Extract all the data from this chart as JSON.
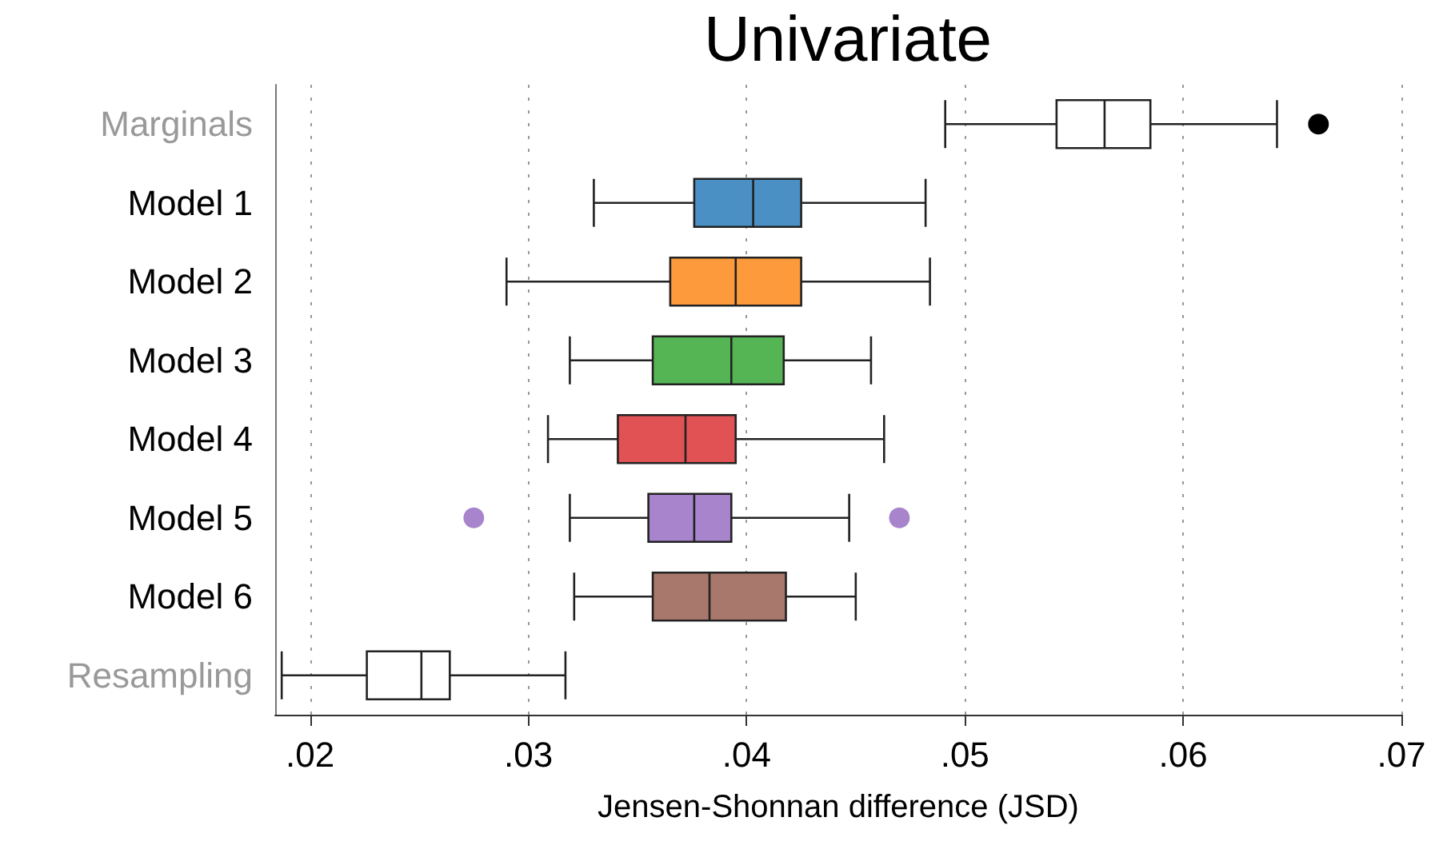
{
  "chart_data": {
    "type": "box",
    "title": "Univariate",
    "xlabel": "Jensen-Shonnan difference (JSD)",
    "orientation": "horizontal",
    "categories": [
      "Marginals",
      "Model 1",
      "Model 2",
      "Model 3",
      "Model 4",
      "Model 5",
      "Model 6",
      "Resampling"
    ],
    "colors": [
      "#ffffff",
      "#4a90c4",
      "#fd9a3c",
      "#55b454",
      "#e05254",
      "#a884cc",
      "#a8786c",
      "#ffffff"
    ],
    "boxes": [
      {
        "low": 0.0491,
        "q1": 0.0542,
        "median": 0.0564,
        "q3": 0.0585,
        "high": 0.0643,
        "outliers": [
          0.0662
        ]
      },
      {
        "low": 0.033,
        "q1": 0.0376,
        "median": 0.0403,
        "q3": 0.0425,
        "high": 0.0482
      },
      {
        "low": 0.029,
        "q1": 0.0365,
        "median": 0.0395,
        "q3": 0.0425,
        "high": 0.0484
      },
      {
        "low": 0.0319,
        "q1": 0.0357,
        "median": 0.0393,
        "q3": 0.0417,
        "high": 0.0457
      },
      {
        "low": 0.0309,
        "q1": 0.0341,
        "median": 0.0372,
        "q3": 0.0395,
        "high": 0.0463
      },
      {
        "low": 0.0319,
        "q1": 0.0355,
        "median": 0.0376,
        "q3": 0.0393,
        "high": 0.0447,
        "outliers": [
          0.0275,
          0.047
        ]
      },
      {
        "low": 0.0321,
        "q1": 0.0357,
        "median": 0.0383,
        "q3": 0.0418,
        "high": 0.045
      },
      {
        "low": 0.0187,
        "q1": 0.0226,
        "median": 0.0251,
        "q3": 0.0264,
        "high": 0.0317
      }
    ],
    "xlim": [
      0.0184,
      0.07
    ],
    "xticks": [
      {
        "value": 0.02,
        "label": ".02"
      },
      {
        "value": 0.03,
        "label": ".03"
      },
      {
        "value": 0.04,
        "label": ".04"
      },
      {
        "value": 0.05,
        "label": ".05"
      },
      {
        "value": 0.06,
        "label": ".06"
      },
      {
        "value": 0.07,
        "label": ".07"
      }
    ],
    "grid": "x"
  }
}
